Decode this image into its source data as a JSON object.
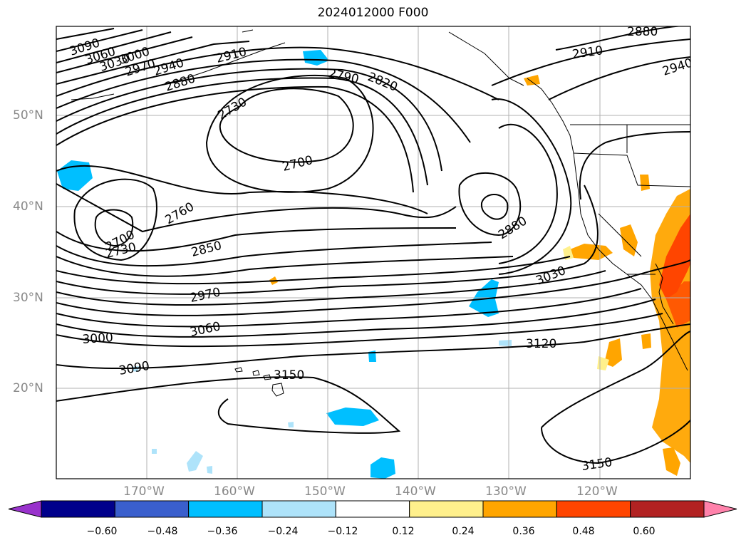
{
  "title": "2024012000 F000",
  "lat_labels": [
    "50°N",
    "40°N",
    "30°N",
    "20°N"
  ],
  "lon_labels": [
    "170°W",
    "160°W",
    "150°W",
    "140°W",
    "130°W",
    "120°W"
  ],
  "colorbar": {
    "ticks": [
      "−0.60",
      "−0.48",
      "−0.36",
      "−0.24",
      "−0.12",
      "0.12",
      "0.24",
      "0.36",
      "0.48",
      "0.60"
    ],
    "colors": [
      "#9932cc",
      "#00008b",
      "#3a5fcd",
      "#00bfff",
      "#aee3fa",
      "#ffffff",
      "#fff08c",
      "#ffa500",
      "#ff4500",
      "#b22222",
      "#ff82ab"
    ]
  },
  "contour_labels": [
    "3090",
    "3060",
    "3030",
    "3000",
    "2970",
    "2940",
    "2910",
    "2880",
    "2790",
    "2820",
    "2730",
    "2700",
    "2760",
    "2700",
    "2730",
    "2850",
    "2970",
    "3060",
    "3000",
    "3090",
    "3150",
    "2880",
    "3030",
    "3120",
    "3150",
    "2880",
    "2910",
    "2940"
  ]
}
